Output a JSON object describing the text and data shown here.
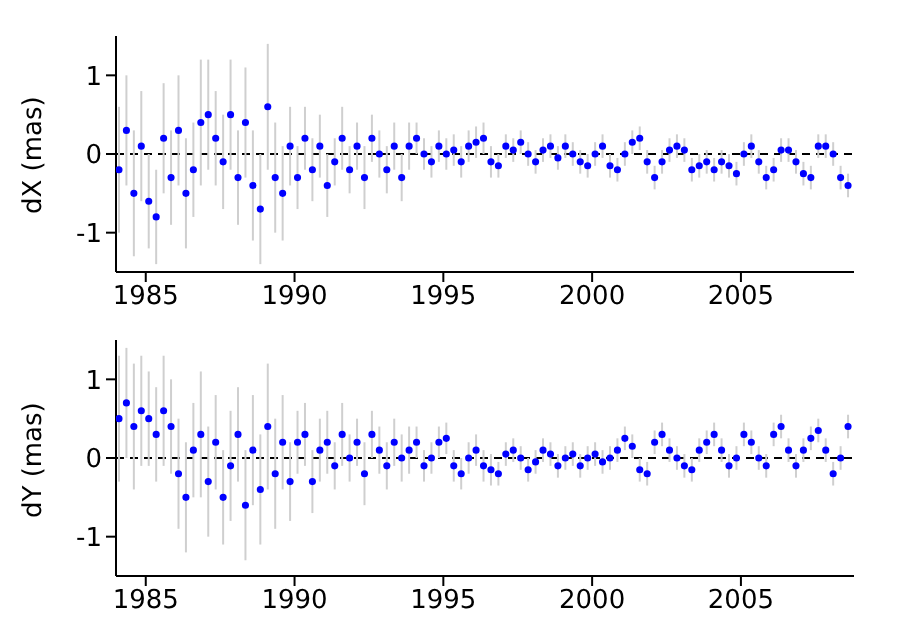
{
  "chart_data": [
    {
      "type": "scatter",
      "ylabel": "dX (mas)",
      "xlim": [
        1984,
        2008.8
      ],
      "xticks": [
        1985,
        1990,
        1995,
        2000,
        2005
      ],
      "ylim": [
        -1.5,
        1.5
      ],
      "yticks": [
        -1,
        0,
        1
      ],
      "marker": "circle",
      "grid": false,
      "color": "#0000ff",
      "ref_lines": [
        {
          "axis": "y",
          "value": 0,
          "color": "#000000",
          "line_style": "dashed"
        }
      ],
      "x": [
        1984.1,
        1984.35,
        1984.6,
        1984.85,
        1985.1,
        1985.35,
        1985.6,
        1985.85,
        1986.1,
        1986.35,
        1986.6,
        1986.85,
        1987.1,
        1987.35,
        1987.6,
        1987.85,
        1988.1,
        1988.35,
        1988.6,
        1988.85,
        1989.1,
        1989.35,
        1989.6,
        1989.85,
        1990.1,
        1990.35,
        1990.6,
        1990.85,
        1991.1,
        1991.35,
        1991.6,
        1991.85,
        1992.1,
        1992.35,
        1992.6,
        1992.85,
        1993.1,
        1993.35,
        1993.6,
        1993.85,
        1994.1,
        1994.35,
        1994.6,
        1994.85,
        1995.1,
        1995.35,
        1995.6,
        1995.85,
        1996.1,
        1996.35,
        1996.6,
        1996.85,
        1997.1,
        1997.35,
        1997.6,
        1997.85,
        1998.1,
        1998.35,
        1998.6,
        1998.85,
        1999.1,
        1999.35,
        1999.6,
        1999.85,
        2000.1,
        2000.35,
        2000.6,
        2000.85,
        2001.1,
        2001.35,
        2001.6,
        2001.85,
        2002.1,
        2002.35,
        2002.6,
        2002.85,
        2003.1,
        2003.35,
        2003.6,
        2003.85,
        2004.1,
        2004.35,
        2004.6,
        2004.85,
        2005.1,
        2005.35,
        2005.6,
        2005.85,
        2006.1,
        2006.35,
        2006.6,
        2006.85,
        2007.1,
        2007.35,
        2007.6,
        2007.85,
        2008.1,
        2008.35,
        2008.6
      ],
      "values": [
        -0.2,
        0.3,
        -0.5,
        0.1,
        -0.6,
        -0.8,
        0.2,
        -0.3,
        0.3,
        -0.5,
        -0.2,
        0.4,
        0.5,
        0.2,
        -0.1,
        0.5,
        -0.3,
        0.4,
        -0.4,
        -0.7,
        0.6,
        -0.3,
        -0.5,
        0.1,
        -0.3,
        0.2,
        -0.2,
        0.1,
        -0.4,
        -0.1,
        0.2,
        -0.2,
        0.1,
        -0.3,
        0.2,
        0,
        -0.2,
        0.1,
        -0.3,
        0.1,
        0.2,
        0,
        -0.1,
        0.1,
        0,
        0.05,
        -0.1,
        0.1,
        0.15,
        0.2,
        -0.1,
        -0.15,
        0.1,
        0.05,
        0.15,
        0,
        -0.1,
        0.05,
        0.1,
        -0.05,
        0.1,
        0,
        -0.1,
        -0.15,
        0,
        0.1,
        -0.15,
        -0.2,
        0,
        0.15,
        0.2,
        -0.1,
        -0.3,
        -0.1,
        0.05,
        0.1,
        0.05,
        -0.2,
        -0.15,
        -0.1,
        -0.2,
        -0.1,
        -0.15,
        -0.25,
        0,
        0.1,
        -0.1,
        -0.3,
        -0.2,
        0.05,
        0.05,
        -0.1,
        -0.25,
        -0.3,
        0.1,
        0.1,
        0,
        -0.3,
        -0.4
      ],
      "errors": [
        0.8,
        0.7,
        0.8,
        0.7,
        0.6,
        0.6,
        0.7,
        0.6,
        0.7,
        0.7,
        0.6,
        0.8,
        0.7,
        0.6,
        0.6,
        0.7,
        0.6,
        0.7,
        0.7,
        0.7,
        0.8,
        0.7,
        0.6,
        0.5,
        0.4,
        0.4,
        0.4,
        0.4,
        0.4,
        0.3,
        0.4,
        0.3,
        0.3,
        0.4,
        0.3,
        0.3,
        0.3,
        0.3,
        0.3,
        0.3,
        0.2,
        0.2,
        0.2,
        0.2,
        0.2,
        0.2,
        0.2,
        0.2,
        0.2,
        0.2,
        0.2,
        0.15,
        0.15,
        0.15,
        0.15,
        0.15,
        0.15,
        0.15,
        0.15,
        0.15,
        0.15,
        0.15,
        0.15,
        0.15,
        0.15,
        0.15,
        0.15,
        0.15,
        0.15,
        0.15,
        0.15,
        0.15,
        0.15,
        0.15,
        0.15,
        0.15,
        0.15,
        0.15,
        0.15,
        0.15,
        0.15,
        0.15,
        0.15,
        0.15,
        0.15,
        0.15,
        0.15,
        0.15,
        0.15,
        0.15,
        0.15,
        0.15,
        0.15,
        0.15,
        0.15,
        0.15,
        0.15,
        0.15,
        0.15
      ]
    },
    {
      "type": "scatter",
      "ylabel": "dY (mas)",
      "xlim": [
        1984,
        2008.8
      ],
      "xticks": [
        1985,
        1990,
        1995,
        2000,
        2005
      ],
      "ylim": [
        -1.5,
        1.5
      ],
      "yticks": [
        -1,
        0,
        1
      ],
      "marker": "circle",
      "grid": false,
      "color": "#0000ff",
      "ref_lines": [
        {
          "axis": "y",
          "value": 0,
          "color": "#000000",
          "line_style": "dashed"
        }
      ],
      "x": [
        1984.1,
        1984.35,
        1984.6,
        1984.85,
        1985.1,
        1985.35,
        1985.6,
        1985.85,
        1986.1,
        1986.35,
        1986.6,
        1986.85,
        1987.1,
        1987.35,
        1987.6,
        1987.85,
        1988.1,
        1988.35,
        1988.6,
        1988.85,
        1989.1,
        1989.35,
        1989.6,
        1989.85,
        1990.1,
        1990.35,
        1990.6,
        1990.85,
        1991.1,
        1991.35,
        1991.6,
        1991.85,
        1992.1,
        1992.35,
        1992.6,
        1992.85,
        1993.1,
        1993.35,
        1993.6,
        1993.85,
        1994.1,
        1994.35,
        1994.6,
        1994.85,
        1995.1,
        1995.35,
        1995.6,
        1995.85,
        1996.1,
        1996.35,
        1996.6,
        1996.85,
        1997.1,
        1997.35,
        1997.6,
        1997.85,
        1998.1,
        1998.35,
        1998.6,
        1998.85,
        1999.1,
        1999.35,
        1999.6,
        1999.85,
        2000.1,
        2000.35,
        2000.6,
        2000.85,
        2001.1,
        2001.35,
        2001.6,
        2001.85,
        2002.1,
        2002.35,
        2002.6,
        2002.85,
        2003.1,
        2003.35,
        2003.6,
        2003.85,
        2004.1,
        2004.35,
        2004.6,
        2004.85,
        2005.1,
        2005.35,
        2005.6,
        2005.85,
        2006.1,
        2006.35,
        2006.6,
        2006.85,
        2007.1,
        2007.35,
        2007.6,
        2007.85,
        2008.1,
        2008.35,
        2008.6
      ],
      "values": [
        0.5,
        0.7,
        0.4,
        0.6,
        0.5,
        0.3,
        0.6,
        0.4,
        -0.2,
        -0.5,
        0.1,
        0.3,
        -0.3,
        0.2,
        -0.5,
        -0.1,
        0.3,
        -0.6,
        0.1,
        -0.4,
        0.4,
        -0.2,
        0.2,
        -0.3,
        0.2,
        0.3,
        -0.3,
        0.1,
        0.2,
        -0.1,
        0.3,
        0,
        0.2,
        -0.2,
        0.3,
        0.1,
        -0.1,
        0.2,
        0,
        0.1,
        0.2,
        -0.1,
        0,
        0.2,
        0.25,
        -0.1,
        -0.2,
        0,
        0.1,
        -0.1,
        -0.15,
        -0.2,
        0.05,
        0.1,
        0,
        -0.15,
        -0.05,
        0.1,
        0.05,
        -0.1,
        0,
        0.05,
        -0.1,
        0,
        0.05,
        -0.05,
        0,
        0.1,
        0.25,
        0.15,
        -0.15,
        -0.2,
        0.2,
        0.3,
        0.1,
        0,
        -0.1,
        -0.15,
        0.1,
        0.2,
        0.3,
        0.1,
        -0.1,
        0,
        0.3,
        0.2,
        0,
        -0.1,
        0.3,
        0.4,
        0.1,
        -0.1,
        0.1,
        0.25,
        0.35,
        0.1,
        -0.2,
        0,
        0.4
      ],
      "errors": [
        0.8,
        0.7,
        0.8,
        0.7,
        0.6,
        0.6,
        0.7,
        0.6,
        0.7,
        0.7,
        0.6,
        0.8,
        0.7,
        0.6,
        0.6,
        0.7,
        0.6,
        0.7,
        0.7,
        0.7,
        0.8,
        0.7,
        0.6,
        0.5,
        0.4,
        0.4,
        0.4,
        0.4,
        0.4,
        0.3,
        0.4,
        0.3,
        0.3,
        0.4,
        0.3,
        0.3,
        0.3,
        0.3,
        0.3,
        0.3,
        0.2,
        0.2,
        0.2,
        0.2,
        0.2,
        0.2,
        0.2,
        0.2,
        0.2,
        0.2,
        0.2,
        0.15,
        0.15,
        0.15,
        0.15,
        0.15,
        0.15,
        0.15,
        0.15,
        0.15,
        0.15,
        0.15,
        0.15,
        0.15,
        0.15,
        0.15,
        0.15,
        0.15,
        0.15,
        0.15,
        0.15,
        0.15,
        0.15,
        0.15,
        0.15,
        0.15,
        0.15,
        0.15,
        0.15,
        0.15,
        0.15,
        0.15,
        0.15,
        0.15,
        0.15,
        0.15,
        0.15,
        0.15,
        0.15,
        0.15,
        0.15,
        0.15,
        0.15,
        0.15,
        0.15,
        0.15,
        0.15,
        0.15,
        0.15
      ]
    }
  ]
}
